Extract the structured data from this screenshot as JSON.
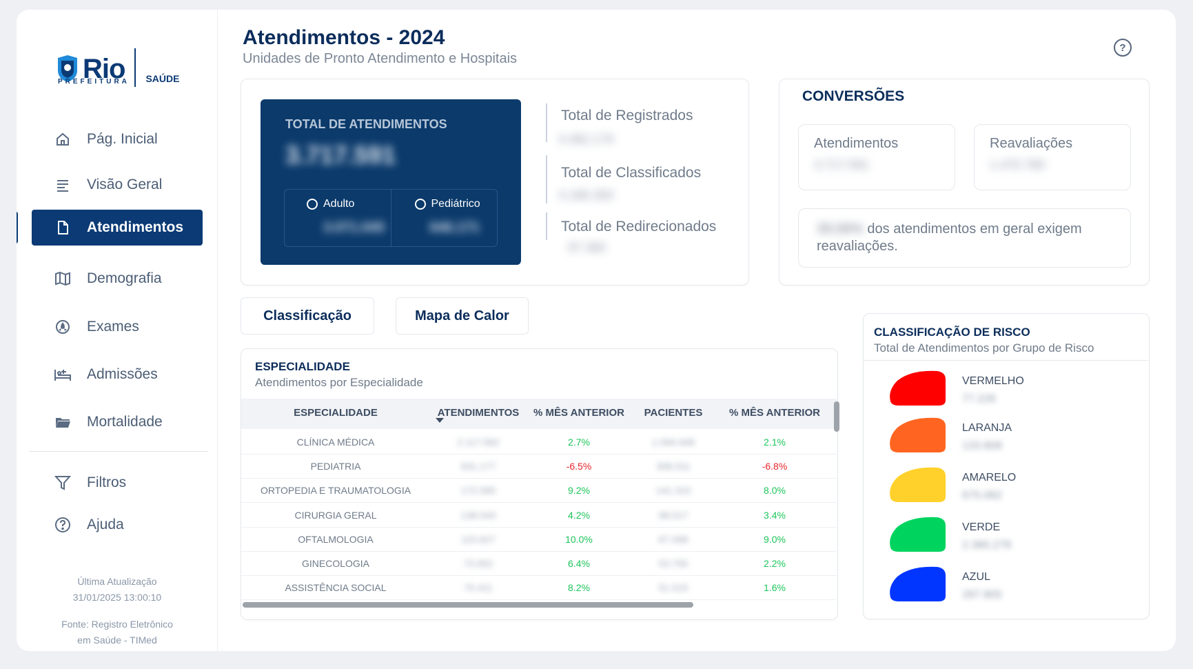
{
  "brand": {
    "logo_text": "Rio",
    "logo_subtext": "PREFEITURA",
    "section": "SAÚDE"
  },
  "nav": [
    {
      "label": "Pág. Inicial",
      "icon": "home-icon"
    },
    {
      "label": "Visão Geral",
      "icon": "list-icon"
    },
    {
      "label": "Atendimentos",
      "icon": "document-icon",
      "active": true
    },
    {
      "label": "Demografia",
      "icon": "map-icon"
    },
    {
      "label": "Exames",
      "icon": "radiation-icon"
    },
    {
      "label": "Admissões",
      "icon": "hospital-bed-icon"
    },
    {
      "label": "Mortalidade",
      "icon": "folder-icon"
    }
  ],
  "nav_secondary": [
    {
      "label": "Filtros",
      "icon": "filter-icon"
    },
    {
      "label": "Ajuda",
      "icon": "help-icon"
    }
  ],
  "footer": {
    "updated_label": "Última Atualização",
    "updated_value": "31/01/2025 13:00:10",
    "source_line1": "Fonte: Registro Eletrônico",
    "source_line2": "em Saúde - TIMed"
  },
  "header": {
    "title": "Atendimentos - 2024",
    "subtitle": "Unidades de Pronto Atendimento e Hospitais"
  },
  "total": {
    "label": "TOTAL DE ATENDIMENTOS",
    "value": "3.717.591",
    "adulto_label": "Adulto",
    "adulto_value": "3.071.045",
    "pediatrico_label": "Pediátrico",
    "pediatrico_value": "646.171"
  },
  "stats": [
    {
      "label": "Total de Registrados",
      "value": "4.482.179"
    },
    {
      "label": "Total de Classificados",
      "value": "3.186.350"
    },
    {
      "label": "Total de Redirecionados",
      "value": "97.360"
    }
  ],
  "conversoes": {
    "title": "CONVERSÕES",
    "atendimentos_label": "Atendimentos",
    "atendimentos_value": "3.717.591",
    "reavaliacoes_label": "Reavaliações",
    "reavaliacoes_value": "1.470.780",
    "pct_value": "39,56%",
    "pct_text": "dos atendimentos em geral exigem reavaliações."
  },
  "tabs": {
    "classificacao": "Classificação",
    "mapa_calor": "Mapa de Calor"
  },
  "especialidade": {
    "title": "ESPECIALIDADE",
    "subtitle": "Atendimentos por Especialidade",
    "columns": [
      "ESPECIALIDADE",
      "ATENDIMENTOS",
      "% MÊS ANTERIOR",
      "PACIENTES",
      "% MÊS ANTERIOR"
    ],
    "rows": [
      {
        "name": "CLÍNICA MÉDICA",
        "atend": "2.117.582",
        "pct1": "2.7%",
        "pac": "1.094.946",
        "pct2": "2.1%"
      },
      {
        "name": "PEDIATRIA",
        "atend": "631.177",
        "pct1": "-6.5%",
        "pac": "308.011",
        "pct2": "-6.8%"
      },
      {
        "name": "ORTOPEDIA E TRAUMATOLOGIA",
        "atend": "172.580",
        "pct1": "9.2%",
        "pac": "141.310",
        "pct2": "8.0%"
      },
      {
        "name": "CIRURGIA GERAL",
        "atend": "138.543",
        "pct1": "4.2%",
        "pac": "98.017",
        "pct2": "3.4%"
      },
      {
        "name": "OFTALMOLOGIA",
        "atend": "115.627",
        "pct1": "10.0%",
        "pac": "67.098",
        "pct2": "9.0%"
      },
      {
        "name": "GINECOLOGIA",
        "atend": "73.952",
        "pct1": "6.4%",
        "pac": "53.750",
        "pct2": "2.2%"
      },
      {
        "name": "ASSISTÊNCIA SOCIAL",
        "atend": "70.411",
        "pct1": "8.2%",
        "pac": "51.515",
        "pct2": "1.6%"
      }
    ]
  },
  "risco": {
    "title": "CLASSIFICAÇÃO DE RISCO",
    "subtitle": "Total de Atendimentos por Grupo de Risco",
    "groups": [
      {
        "name": "VERMELHO",
        "value": "77.226",
        "color": "#ff0000"
      },
      {
        "name": "LARANJA",
        "value": "133.808",
        "color": "#ff6520"
      },
      {
        "name": "AMARELO",
        "value": "675.082",
        "color": "#ffd12a"
      },
      {
        "name": "VERDE",
        "value": "2.380.278",
        "color": "#00d45f"
      },
      {
        "name": "AZUL",
        "value": "287.805",
        "color": "#0036ff"
      }
    ]
  },
  "colors": {
    "primary": "#0b3a75",
    "positive": "#1cc45a",
    "negative": "#e6262a"
  }
}
